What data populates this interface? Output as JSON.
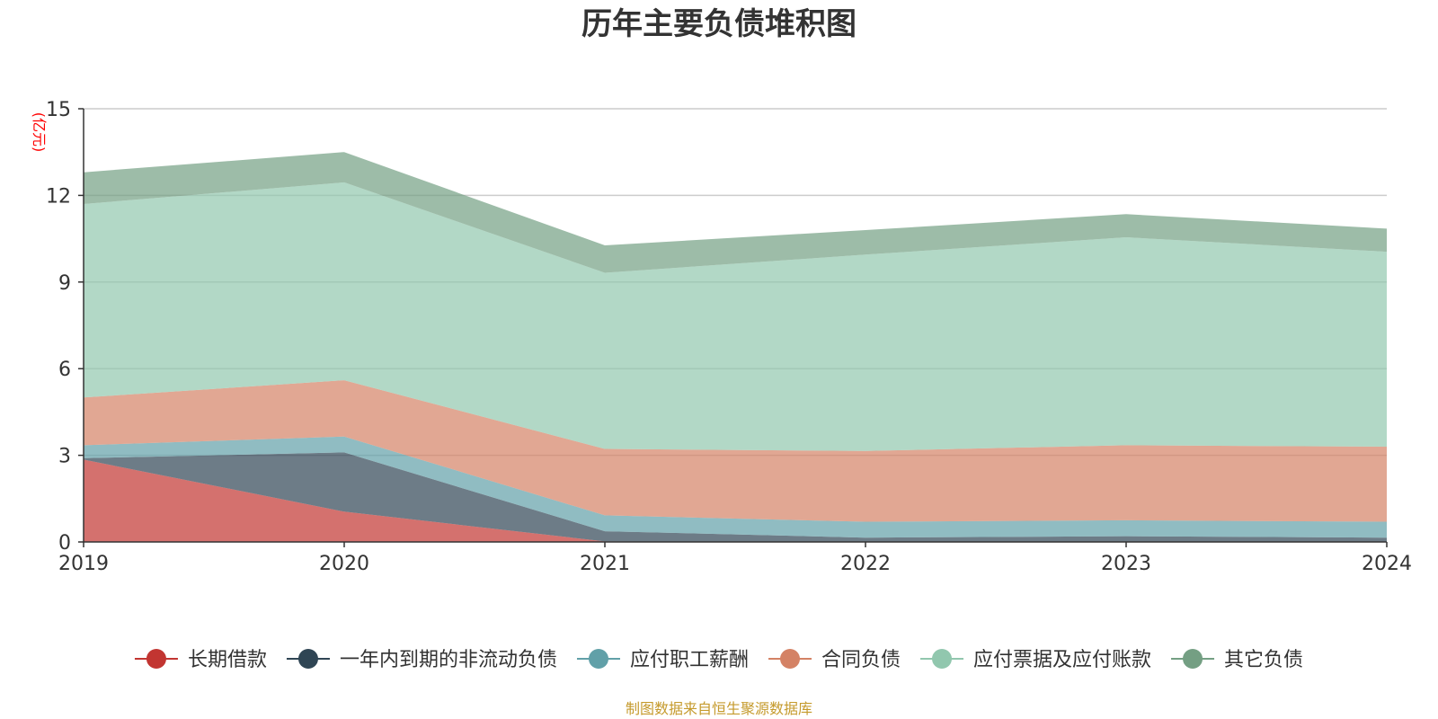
{
  "chart_data": {
    "type": "area",
    "stacked": true,
    "title": "历年主要负债堆积图",
    "unit_label": "(亿元)",
    "source_note": "制图数据来自恒生聚源数据库",
    "x": [
      "2019",
      "2020",
      "2021",
      "2022",
      "2023",
      "2024"
    ],
    "ylim": [
      0,
      15
    ],
    "yticks": [
      "0",
      "3",
      "6",
      "9",
      "12",
      "15"
    ],
    "grid": true,
    "legend_position": "bottom",
    "series": [
      {
        "name": "长期借款",
        "color": "#c23531",
        "values": [
          2.85,
          1.05,
          0.02,
          0.0,
          0.0,
          0.0
        ]
      },
      {
        "name": "一年内到期的非流动负债",
        "color": "#2f4554",
        "values": [
          0.05,
          2.05,
          0.35,
          0.15,
          0.2,
          0.15
        ]
      },
      {
        "name": "应付职工薪酬",
        "color": "#61a0a8",
        "values": [
          0.45,
          0.55,
          0.55,
          0.55,
          0.55,
          0.55
        ]
      },
      {
        "name": "合同负债",
        "color": "#d48265",
        "values": [
          1.65,
          1.95,
          2.3,
          2.45,
          2.6,
          2.6
        ]
      },
      {
        "name": "应付票据及应付账款",
        "color": "#91c7ae",
        "values": [
          6.7,
          6.85,
          6.1,
          6.8,
          7.2,
          6.75
        ]
      },
      {
        "name": "其它负债",
        "color": "#749f83",
        "values": [
          1.1,
          1.05,
          0.95,
          0.85,
          0.8,
          0.8
        ]
      }
    ]
  }
}
